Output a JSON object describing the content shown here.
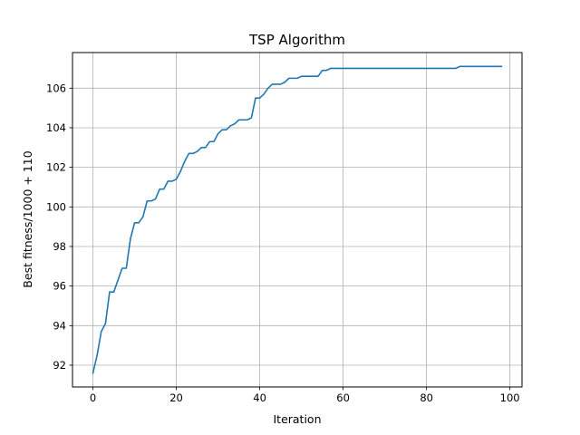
{
  "chart_data": {
    "type": "line",
    "title": "TSP Algorithm",
    "xlabel": "Iteration",
    "ylabel": "Best fitness/1000 + 110",
    "xlim": [
      -4.9,
      102.9
    ],
    "ylim": [
      90.9,
      107.8
    ],
    "xticks": [
      0,
      20,
      40,
      60,
      80,
      100
    ],
    "yticks": [
      92,
      94,
      96,
      98,
      100,
      102,
      104,
      106
    ],
    "grid": true,
    "legend": "none",
    "line_color": "#1f77b4",
    "series": [
      {
        "x": [
          0,
          1,
          2,
          3,
          4,
          5,
          6,
          7,
          8,
          9,
          10,
          11,
          12,
          13,
          14,
          15,
          16,
          17,
          18,
          19,
          20,
          21,
          22,
          23,
          24,
          25,
          26,
          27,
          28,
          29,
          30,
          31,
          32,
          33,
          34,
          35,
          36,
          37,
          38,
          39,
          40,
          41,
          42,
          43,
          44,
          45,
          46,
          47,
          48,
          49,
          50,
          51,
          52,
          53,
          54,
          55,
          56,
          57,
          58,
          59,
          60,
          61,
          62,
          63,
          64,
          65,
          66,
          67,
          68,
          69,
          70,
          71,
          72,
          73,
          74,
          75,
          76,
          77,
          78,
          79,
          80,
          81,
          82,
          83,
          84,
          85,
          86,
          87,
          88,
          89,
          90,
          91,
          92,
          93,
          94,
          95,
          96,
          97,
          98
        ],
        "values": [
          91.6,
          92.5,
          93.7,
          94.1,
          95.7,
          95.7,
          96.3,
          96.9,
          96.9,
          98.4,
          99.2,
          99.2,
          99.5,
          100.3,
          100.3,
          100.4,
          100.9,
          100.9,
          101.3,
          101.3,
          101.4,
          101.8,
          102.3,
          102.7,
          102.7,
          102.8,
          103.0,
          103.0,
          103.3,
          103.3,
          103.7,
          103.9,
          103.9,
          104.1,
          104.2,
          104.4,
          104.4,
          104.4,
          104.5,
          105.5,
          105.5,
          105.7,
          106.0,
          106.2,
          106.2,
          106.2,
          106.3,
          106.5,
          106.5,
          106.5,
          106.6,
          106.6,
          106.6,
          106.6,
          106.6,
          106.9,
          106.9,
          107.0,
          107.0,
          107.0,
          107.0,
          107.0,
          107.0,
          107.0,
          107.0,
          107.0,
          107.0,
          107.0,
          107.0,
          107.0,
          107.0,
          107.0,
          107.0,
          107.0,
          107.0,
          107.0,
          107.0,
          107.0,
          107.0,
          107.0,
          107.0,
          107.0,
          107.0,
          107.0,
          107.0,
          107.0,
          107.0,
          107.0,
          107.1,
          107.1,
          107.1,
          107.1,
          107.1,
          107.1,
          107.1,
          107.1,
          107.1,
          107.1,
          107.1
        ]
      }
    ]
  }
}
